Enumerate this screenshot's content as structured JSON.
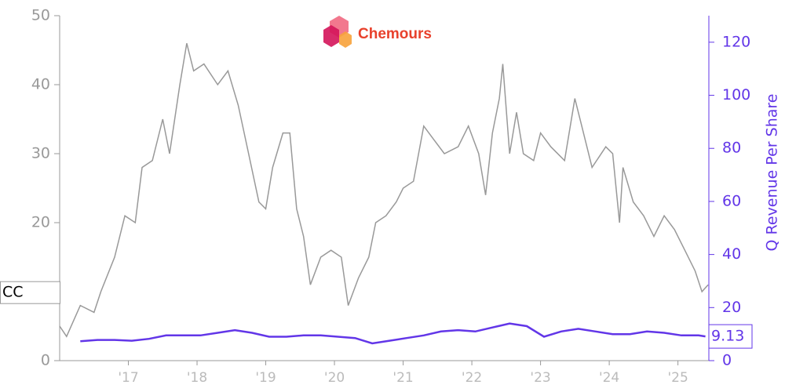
{
  "chart_data": {
    "type": "line",
    "logo_text": "Chemours",
    "y2_label": "Q Revenue Per Share",
    "xlim": [
      2016.0,
      2025.45
    ],
    "xticks": [
      {
        "value": 2017,
        "label": "'17"
      },
      {
        "value": 2018,
        "label": "'18"
      },
      {
        "value": 2019,
        "label": "'19"
      },
      {
        "value": 2020,
        "label": "'20"
      },
      {
        "value": 2021,
        "label": "'21"
      },
      {
        "value": 2022,
        "label": "'22"
      },
      {
        "value": 2023,
        "label": "'23"
      },
      {
        "value": 2024,
        "label": "'24"
      },
      {
        "value": 2025,
        "label": "'25"
      }
    ],
    "ylim": [
      0,
      50
    ],
    "yticks": [
      0,
      10,
      20,
      30,
      40,
      50
    ],
    "y2lim": [
      0,
      130
    ],
    "y2ticks": [
      0,
      20,
      40,
      60,
      80,
      100,
      120
    ],
    "y2_color": "#6236e8",
    "series": [
      {
        "name": "CC",
        "color": "#999999",
        "axis": "y",
        "x": [
          2016.0,
          2016.1,
          2016.3,
          2016.5,
          2016.6,
          2016.8,
          2016.95,
          2017.1,
          2017.2,
          2017.35,
          2017.5,
          2017.6,
          2017.75,
          2017.85,
          2017.95,
          2018.1,
          2018.3,
          2018.45,
          2018.6,
          2018.75,
          2018.9,
          2019.0,
          2019.1,
          2019.25,
          2019.35,
          2019.45,
          2019.55,
          2019.65,
          2019.8,
          2019.95,
          2020.1,
          2020.2,
          2020.35,
          2020.5,
          2020.6,
          2020.75,
          2020.9,
          2021.0,
          2021.15,
          2021.3,
          2021.45,
          2021.6,
          2021.8,
          2021.95,
          2022.1,
          2022.2,
          2022.3,
          2022.4,
          2022.45,
          2022.55,
          2022.65,
          2022.75,
          2022.9,
          2023.0,
          2023.15,
          2023.35,
          2023.5,
          2023.6,
          2023.75,
          2023.95,
          2024.05,
          2024.15,
          2024.2,
          2024.35,
          2024.5,
          2024.65,
          2024.8,
          2024.95,
          2025.1,
          2025.25,
          2025.35,
          2025.44
        ],
        "values": [
          5,
          3.5,
          8,
          7,
          10,
          15,
          21,
          20,
          28,
          29,
          35,
          30,
          40,
          46,
          42,
          43,
          40,
          42,
          37,
          30,
          23,
          22,
          28,
          33,
          33,
          22,
          18,
          11,
          15,
          16,
          15,
          8,
          12,
          15,
          20,
          21,
          23,
          25,
          26,
          34,
          32,
          30,
          31,
          34,
          30,
          24,
          33,
          38,
          43,
          30,
          36,
          30,
          29,
          33,
          31,
          29,
          38,
          34,
          28,
          31,
          30,
          20,
          28,
          23,
          21,
          18,
          21,
          19,
          16,
          13,
          10,
          11
        ]
      },
      {
        "color": "#6236e8",
        "axis": "y2",
        "x": [
          2016.3,
          2016.55,
          2016.8,
          2017.05,
          2017.3,
          2017.55,
          2017.8,
          2018.05,
          2018.3,
          2018.55,
          2018.8,
          2019.05,
          2019.3,
          2019.55,
          2019.8,
          2020.05,
          2020.3,
          2020.55,
          2020.8,
          2021.05,
          2021.3,
          2021.55,
          2021.8,
          2022.05,
          2022.3,
          2022.55,
          2022.8,
          2023.05,
          2023.3,
          2023.55,
          2023.8,
          2024.05,
          2024.3,
          2024.55,
          2024.8,
          2025.05,
          2025.3,
          2025.4
        ],
        "values": [
          7.3,
          7.8,
          7.8,
          7.5,
          8.2,
          9.5,
          9.5,
          9.5,
          10.5,
          11.5,
          10.5,
          9,
          9,
          9.5,
          9.5,
          9,
          8.5,
          6.5,
          7.5,
          8.5,
          9.5,
          11,
          11.5,
          11,
          12.5,
          14,
          13,
          9,
          11,
          12,
          11,
          10,
          10,
          11,
          10.5,
          9.5,
          9.5,
          9.13
        ]
      }
    ]
  }
}
